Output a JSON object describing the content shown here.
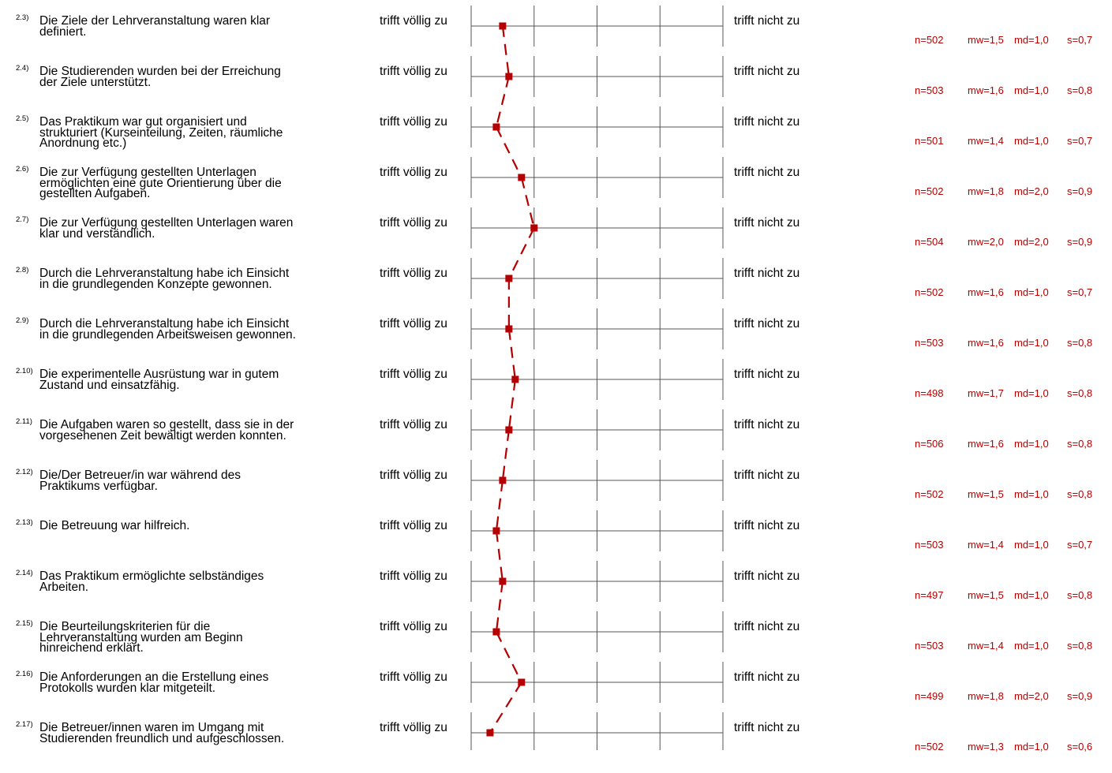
{
  "chart_data": {
    "type": "line",
    "scale_left_label": "trifft völlig zu",
    "scale_right_label": "trifft nicht zu",
    "xlim": [
      1,
      5
    ],
    "grid": true,
    "series_color": "#b40000",
    "items": [
      {
        "num": "2.3)",
        "text": "Die Ziele der Lehrveranstaltung waren klar\ndefiniert.",
        "n": "n=502",
        "mw": "mw=1,5",
        "md": "md=1,0",
        "s": "s=0,7",
        "value": 1.5
      },
      {
        "num": "2.4)",
        "text": "Die Studierenden wurden bei der Erreichung\nder Ziele unterstützt.",
        "n": "n=503",
        "mw": "mw=1,6",
        "md": "md=1,0",
        "s": "s=0,8",
        "value": 1.6
      },
      {
        "num": "2.5)",
        "text": "Das Praktikum war gut organisiert und\nstrukturiert (Kurseinteilung, Zeiten, räumliche\nAnordnung etc.)",
        "n": "n=501",
        "mw": "mw=1,4",
        "md": "md=1,0",
        "s": "s=0,7",
        "value": 1.4
      },
      {
        "num": "2.6)",
        "text": "Die zur Verfügung gestellten Unterlagen\nermöglichten eine gute Orientierung über die\ngestellten Aufgaben.",
        "n": "n=502",
        "mw": "mw=1,8",
        "md": "md=2,0",
        "s": "s=0,9",
        "value": 1.8
      },
      {
        "num": "2.7)",
        "text": "Die zur Verfügung gestellten Unterlagen waren\nklar und verständlich.",
        "n": "n=504",
        "mw": "mw=2,0",
        "md": "md=2,0",
        "s": "s=0,9",
        "value": 2.0
      },
      {
        "num": "2.8)",
        "text": "Durch die Lehrveranstaltung habe ich Einsicht\nin die grundlegenden Konzepte gewonnen.",
        "n": "n=502",
        "mw": "mw=1,6",
        "md": "md=1,0",
        "s": "s=0,7",
        "value": 1.6
      },
      {
        "num": "2.9)",
        "text": "Durch die Lehrveranstaltung habe ich Einsicht\nin die grundlegenden Arbeitsweisen gewonnen.",
        "n": "n=503",
        "mw": "mw=1,6",
        "md": "md=1,0",
        "s": "s=0,8",
        "value": 1.6
      },
      {
        "num": "2.10)",
        "text": "Die experimentelle Ausrüstung war in gutem\nZustand und einsatzfähig.",
        "n": "n=498",
        "mw": "mw=1,7",
        "md": "md=1,0",
        "s": "s=0,8",
        "value": 1.7
      },
      {
        "num": "2.11)",
        "text": "Die Aufgaben waren so gestellt, dass sie in der\nvorgesehenen Zeit bewältigt werden konnten.",
        "n": "n=506",
        "mw": "mw=1,6",
        "md": "md=1,0",
        "s": "s=0,8",
        "value": 1.6
      },
      {
        "num": "2.12)",
        "text": "Die/Der Betreuer/in war während des\nPraktikums verfügbar.",
        "n": "n=502",
        "mw": "mw=1,5",
        "md": "md=1,0",
        "s": "s=0,8",
        "value": 1.5
      },
      {
        "num": "2.13)",
        "text": "Die Betreuung war hilfreich.",
        "n": "n=503",
        "mw": "mw=1,4",
        "md": "md=1,0",
        "s": "s=0,7",
        "value": 1.4
      },
      {
        "num": "2.14)",
        "text": "Das Praktikum ermöglichte selbständiges\nArbeiten.",
        "n": "n=497",
        "mw": "mw=1,5",
        "md": "md=1,0",
        "s": "s=0,8",
        "value": 1.5
      },
      {
        "num": "2.15)",
        "text": "Die Beurteilungskriterien für die\nLehrveranstaltung wurden am Beginn\nhinreichend erklärt.",
        "n": "n=503",
        "mw": "mw=1,4",
        "md": "md=1,0",
        "s": "s=0,8",
        "value": 1.4
      },
      {
        "num": "2.16)",
        "text": "Die Anforderungen an die Erstellung eines\nProtokolls wurden klar mitgeteilt.",
        "n": "n=499",
        "mw": "mw=1,8",
        "md": "md=2,0",
        "s": "s=0,9",
        "value": 1.8
      },
      {
        "num": "2.17)",
        "text": "Die Betreuer/innen waren im Umgang mit\nStudierenden freundlich und aufgeschlossen.",
        "n": "n=502",
        "mw": "mw=1,3",
        "md": "md=1,0",
        "s": "s=0,6",
        "value": 1.3
      }
    ]
  }
}
